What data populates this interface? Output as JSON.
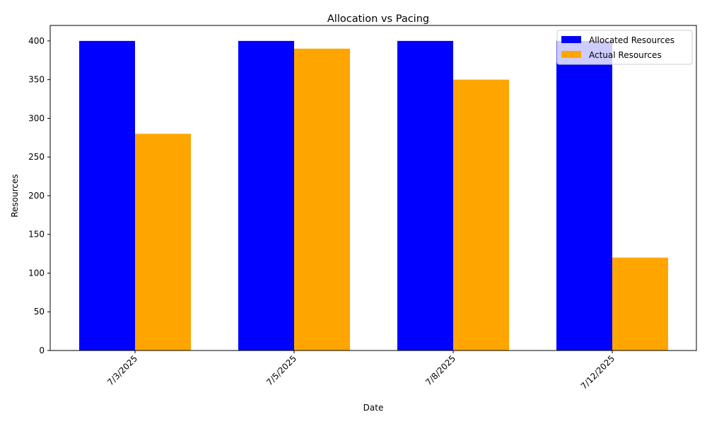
{
  "chart_data": {
    "type": "bar",
    "title": "Allocation vs Pacing",
    "xlabel": "Date",
    "ylabel": "Resources",
    "categories": [
      "7/3/2025",
      "7/5/2025",
      "7/8/2025",
      "7/12/2025"
    ],
    "series": [
      {
        "name": "Allocated Resources",
        "color": "#0000ff",
        "values": [
          400,
          400,
          400,
          400
        ]
      },
      {
        "name": "Actual Resources",
        "color": "#ffa500",
        "values": [
          280,
          390,
          350,
          120
        ]
      }
    ],
    "ylim": [
      0,
      420
    ],
    "yticks": [
      0,
      50,
      100,
      150,
      200,
      250,
      300,
      350,
      400
    ],
    "grid": false,
    "legend_position": "top-right",
    "xtick_rotation_deg": 45
  }
}
